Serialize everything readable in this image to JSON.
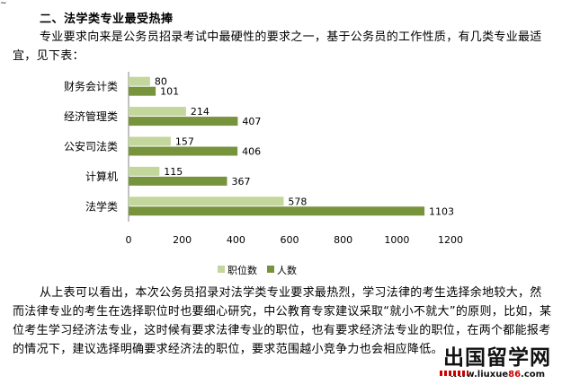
{
  "top_mark": "~",
  "section_heading": "二、法学类专业最受热捧",
  "paragraph_intro": "专业要求向来是公务员招录考试中最硬性的要求之一，基于公务员的工作性质，有几类专业最适宜，见下表：",
  "paragraph_body": "从上表可以看出，本次公务员招录对法学类专业要求最热烈，学习法律的考生选择余地较大，然而法律专业的考生在选择职位时也要细心研究，中公教育专家建议采取“就小不就大”的原则，比如，某位考生学习经济法专业，这时候有要求法律专业的职位，也有要求经济法专业的职位，在两个都能报考的情况下，建议选择明确要求经济法的职位，要求范围越小竞争力也会相应降低。",
  "watermark": {
    "title": "出国留学网",
    "url_prefix": "www.liuxue",
    "url_number": "86",
    "url_suffix": ".com"
  },
  "chart_data": {
    "type": "bar",
    "orientation": "horizontal",
    "categories": [
      "财务会计类",
      "经济管理类",
      "公安司法类",
      "计算机",
      "法学类"
    ],
    "series": [
      {
        "name": "职位数",
        "values": [
          80,
          214,
          157,
          115,
          578
        ],
        "color": "#c3d69b"
      },
      {
        "name": "人数",
        "values": [
          101,
          407,
          406,
          367,
          1103
        ],
        "color": "#77933c"
      }
    ],
    "xlim": [
      0,
      1200
    ],
    "x_ticks": [
      0,
      200,
      400,
      600,
      800,
      1000,
      1200
    ],
    "data_labels": true,
    "grid": false,
    "legend_position": "bottom"
  }
}
